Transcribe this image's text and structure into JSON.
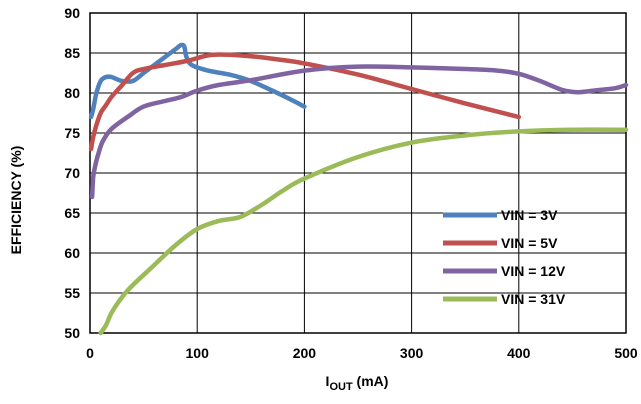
{
  "chart_data": {
    "type": "line",
    "title": "",
    "xlabel": {
      "main": "I",
      "sub": "OUT",
      "unit": " (mA)"
    },
    "ylabel": "EFFICIENCY (%)",
    "xlim": [
      0,
      500
    ],
    "ylim": [
      50,
      90
    ],
    "x_ticks": [
      0,
      100,
      200,
      300,
      400,
      500
    ],
    "y_ticks": [
      50,
      55,
      60,
      65,
      70,
      75,
      80,
      85,
      90
    ],
    "grid": true,
    "legend_position": "bottom-right",
    "series": [
      {
        "name": "VIN = 3V",
        "color": "#4f81bd",
        "points": [
          [
            1,
            77
          ],
          [
            3,
            78
          ],
          [
            6,
            80
          ],
          [
            10,
            81.5
          ],
          [
            15,
            82
          ],
          [
            20,
            82
          ],
          [
            30,
            81.5
          ],
          [
            40,
            81.5
          ],
          [
            50,
            82.5
          ],
          [
            60,
            83.5
          ],
          [
            70,
            84.5
          ],
          [
            80,
            85.5
          ],
          [
            85,
            86
          ],
          [
            88,
            85.8
          ],
          [
            90,
            84.5
          ],
          [
            95,
            83.5
          ],
          [
            110,
            82.8
          ],
          [
            130,
            82.3
          ],
          [
            150,
            81.5
          ],
          [
            170,
            80.3
          ],
          [
            190,
            79
          ],
          [
            200,
            78.3
          ]
        ]
      },
      {
        "name": "VIN = 5V",
        "color": "#c0504d",
        "points": [
          [
            1,
            73
          ],
          [
            3,
            74.5
          ],
          [
            6,
            76
          ],
          [
            10,
            77.5
          ],
          [
            15,
            78.5
          ],
          [
            20,
            79.5
          ],
          [
            30,
            81
          ],
          [
            40,
            82.5
          ],
          [
            50,
            83
          ],
          [
            70,
            83.5
          ],
          [
            90,
            84
          ],
          [
            110,
            84.7
          ],
          [
            125,
            84.8
          ],
          [
            150,
            84.6
          ],
          [
            175,
            84.2
          ],
          [
            200,
            83.7
          ],
          [
            250,
            82.3
          ],
          [
            300,
            80.5
          ],
          [
            350,
            78.7
          ],
          [
            400,
            77
          ]
        ]
      },
      {
        "name": "VIN = 12V",
        "color": "#8064a2",
        "points": [
          [
            2,
            67
          ],
          [
            3,
            69.5
          ],
          [
            5,
            71
          ],
          [
            8,
            72.5
          ],
          [
            12,
            74
          ],
          [
            20,
            75.5
          ],
          [
            35,
            77
          ],
          [
            50,
            78.3
          ],
          [
            70,
            79
          ],
          [
            85,
            79.5
          ],
          [
            100,
            80.3
          ],
          [
            120,
            81
          ],
          [
            150,
            81.6
          ],
          [
            200,
            82.8
          ],
          [
            250,
            83.3
          ],
          [
            300,
            83.2
          ],
          [
            350,
            83
          ],
          [
            380,
            82.8
          ],
          [
            400,
            82.4
          ],
          [
            420,
            81.5
          ],
          [
            440,
            80.4
          ],
          [
            455,
            80.1
          ],
          [
            470,
            80.3
          ],
          [
            490,
            80.6
          ],
          [
            500,
            81
          ]
        ]
      },
      {
        "name": "VIN = 31V",
        "color": "#9bbb59",
        "points": [
          [
            10,
            50
          ],
          [
            15,
            51
          ],
          [
            20,
            52.5
          ],
          [
            30,
            54.5
          ],
          [
            40,
            56
          ],
          [
            60,
            58.5
          ],
          [
            80,
            61
          ],
          [
            100,
            63
          ],
          [
            120,
            64
          ],
          [
            140,
            64.5
          ],
          [
            160,
            66
          ],
          [
            180,
            67.8
          ],
          [
            200,
            69.3
          ],
          [
            250,
            72
          ],
          [
            300,
            73.8
          ],
          [
            350,
            74.7
          ],
          [
            400,
            75.2
          ],
          [
            450,
            75.4
          ],
          [
            500,
            75.4
          ]
        ]
      }
    ]
  }
}
